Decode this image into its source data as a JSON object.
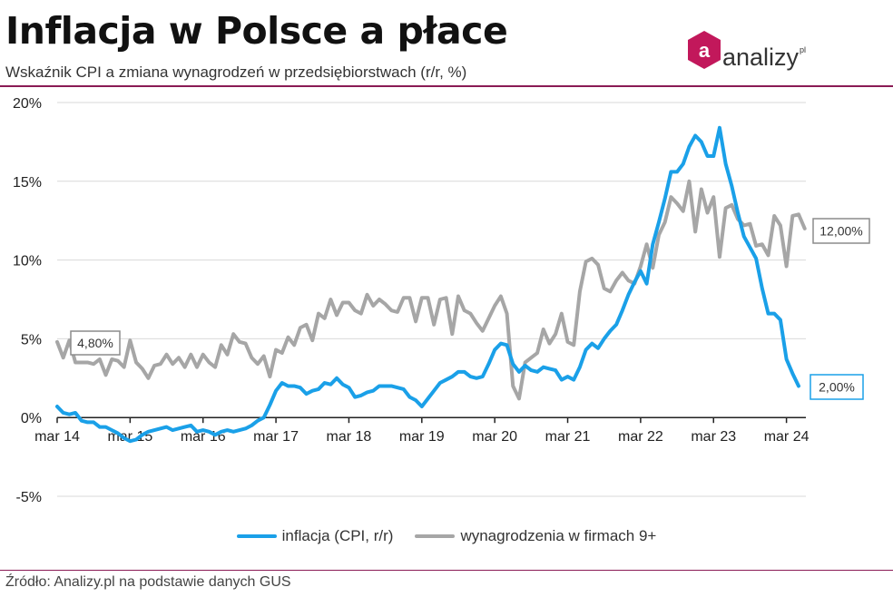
{
  "header": {
    "title": "Inflacja w Polsce a płace",
    "subtitle": "Wskaźnik CPI a zmiana wynagrodzeń w przedsiębiorstwach (r/r, %)",
    "logo_text": "analizy",
    "logo_sup": "pl",
    "logo_letter": "a"
  },
  "footer": {
    "source": "Źródło: Analizy.pl na podstawie danych GUS"
  },
  "colors": {
    "cpi": "#1aa0e8",
    "wages": "#a6a6a6",
    "accent": "#8a1b55",
    "grid": "#d9d9d9"
  },
  "chart_data": {
    "type": "line",
    "title": "Inflacja w Polsce a płace",
    "ylabel": "",
    "xlabel": "",
    "ylim": [
      -5,
      20
    ],
    "yticks": [
      -5,
      0,
      5,
      10,
      15,
      20
    ],
    "ytick_labels": [
      "-5%",
      "0%",
      "5%",
      "10%",
      "15%",
      "20%"
    ],
    "x_start": "mar 14",
    "x_ticks": [
      {
        "index": 0,
        "label": "mar 14"
      },
      {
        "index": 12,
        "label": "mar 15"
      },
      {
        "index": 24,
        "label": "mar 16"
      },
      {
        "index": 36,
        "label": "mar 17"
      },
      {
        "index": 48,
        "label": "mar 18"
      },
      {
        "index": 60,
        "label": "mar 19"
      },
      {
        "index": 72,
        "label": "mar 20"
      },
      {
        "index": 84,
        "label": "mar 21"
      },
      {
        "index": 96,
        "label": "mar 22"
      },
      {
        "index": 108,
        "label": "mar 23"
      },
      {
        "index": 120,
        "label": "mar 24"
      }
    ],
    "grid": true,
    "legend_position": "bottom",
    "series": [
      {
        "name": "inflacja (CPI, r/r)",
        "key": "cpi",
        "end_label": "2,00%",
        "values": [
          0.7,
          0.3,
          0.2,
          0.3,
          -0.2,
          -0.3,
          -0.3,
          -0.6,
          -0.6,
          -0.8,
          -1.0,
          -1.3,
          -1.5,
          -1.4,
          -1.1,
          -0.9,
          -0.8,
          -0.7,
          -0.6,
          -0.8,
          -0.7,
          -0.6,
          -0.5,
          -0.9,
          -0.8,
          -0.9,
          -1.1,
          -0.9,
          -0.8,
          -0.9,
          -0.8,
          -0.7,
          -0.5,
          -0.2,
          0.0,
          0.8,
          1.7,
          2.2,
          2.0,
          2.0,
          1.9,
          1.5,
          1.7,
          1.8,
          2.2,
          2.1,
          2.5,
          2.1,
          1.9,
          1.3,
          1.4,
          1.6,
          1.7,
          2.0,
          2.0,
          2.0,
          1.9,
          1.8,
          1.3,
          1.1,
          0.7,
          1.2,
          1.7,
          2.2,
          2.4,
          2.6,
          2.9,
          2.9,
          2.6,
          2.5,
          2.6,
          3.4,
          4.3,
          4.7,
          4.6,
          3.4,
          2.9,
          3.3,
          3.0,
          2.9,
          3.2,
          3.1,
          3.0,
          2.4,
          2.6,
          2.4,
          3.2,
          4.3,
          4.7,
          4.4,
          5.0,
          5.5,
          5.9,
          6.8,
          7.8,
          8.6,
          9.3,
          8.5,
          11.0,
          12.4,
          13.9,
          15.6,
          15.6,
          16.1,
          17.2,
          17.9,
          17.5,
          16.6,
          16.6,
          18.4,
          16.1,
          14.7,
          13.0,
          11.5,
          10.8,
          10.1,
          8.2,
          6.6,
          6.6,
          6.2,
          3.7,
          2.8,
          2.0
        ]
      },
      {
        "name": "wynagrodzenia w firmach 9+",
        "key": "wages",
        "start_label": "4,80%",
        "end_label": "12,00%",
        "values": [
          4.8,
          3.8,
          4.9,
          3.5,
          3.5,
          3.5,
          3.4,
          3.7,
          2.7,
          3.7,
          3.6,
          3.2,
          4.9,
          3.5,
          3.1,
          2.5,
          3.3,
          3.4,
          4.0,
          3.4,
          3.8,
          3.2,
          4.0,
          3.2,
          4.0,
          3.5,
          3.2,
          4.6,
          4.0,
          5.3,
          4.8,
          4.7,
          3.8,
          3.4,
          3.9,
          2.6,
          4.3,
          4.1,
          5.1,
          4.6,
          5.7,
          5.9,
          4.9,
          6.6,
          6.3,
          7.5,
          6.5,
          7.3,
          7.3,
          6.8,
          6.6,
          7.8,
          7.1,
          7.5,
          7.2,
          6.8,
          6.7,
          7.6,
          7.6,
          6.1,
          7.6,
          7.6,
          5.9,
          7.5,
          7.6,
          5.3,
          7.7,
          6.8,
          6.6,
          6.0,
          5.5,
          6.3,
          7.1,
          7.7,
          6.6,
          2.0,
          1.2,
          3.5,
          3.8,
          4.1,
          5.6,
          4.7,
          5.3,
          6.6,
          4.8,
          4.6,
          8.0,
          9.9,
          10.1,
          9.7,
          8.2,
          8.0,
          8.7,
          9.2,
          8.7,
          8.5,
          9.6,
          11.0,
          9.5,
          11.6,
          12.4,
          14.0,
          13.6,
          13.1,
          15.0,
          11.8,
          14.5,
          13.0,
          14.0,
          10.2,
          13.3,
          13.5,
          12.6,
          12.2,
          12.3,
          10.9,
          11.0,
          10.3,
          12.8,
          12.2,
          9.6,
          12.8,
          12.9,
          12.0
        ]
      }
    ]
  }
}
